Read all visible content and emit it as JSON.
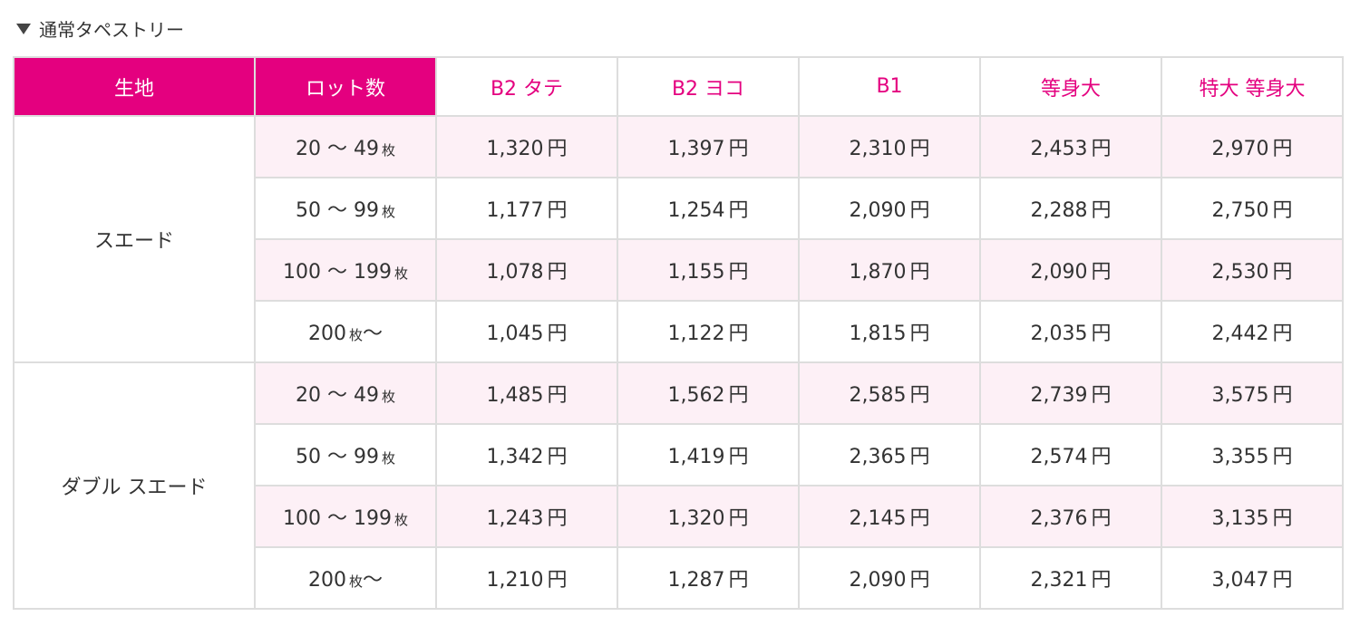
{
  "section": {
    "title": "通常タペストリー",
    "triangle_icon": "triangle-down-icon"
  },
  "colors": {
    "accent": "#e4007f",
    "row_stripe": "#fdf0f6",
    "border": "#dddddd"
  },
  "table": {
    "headers": {
      "fabric": "生地",
      "lot": "ロット数",
      "sizes": [
        "B2 タテ",
        "B2 ヨコ",
        "B1",
        "等身大",
        "特大 等身大"
      ]
    },
    "currency": "円",
    "lot_unit": "枚",
    "lot_tilde": "〜",
    "groups": [
      {
        "fabric": "スエード",
        "rows": [
          {
            "range": "20 〜 49",
            "prices": [
              "1,320",
              "1,397",
              "2,310",
              "2,453",
              "2,970"
            ]
          },
          {
            "range": "50 〜 99",
            "prices": [
              "1,177",
              "1,254",
              "2,090",
              "2,288",
              "2,750"
            ]
          },
          {
            "range": "100 〜 199",
            "prices": [
              "1,078",
              "1,155",
              "1,870",
              "2,090",
              "2,530"
            ]
          },
          {
            "range": "200",
            "prices": [
              "1,045",
              "1,122",
              "1,815",
              "2,035",
              "2,442"
            ],
            "open_ended": true
          }
        ]
      },
      {
        "fabric": "ダブル スエード",
        "rows": [
          {
            "range": "20 〜 49",
            "prices": [
              "1,485",
              "1,562",
              "2,585",
              "2,739",
              "3,575"
            ]
          },
          {
            "range": "50 〜 99",
            "prices": [
              "1,342",
              "1,419",
              "2,365",
              "2,574",
              "3,355"
            ]
          },
          {
            "range": "100 〜 199",
            "prices": [
              "1,243",
              "1,320",
              "2,145",
              "2,376",
              "3,135"
            ]
          },
          {
            "range": "200",
            "prices": [
              "1,210",
              "1,287",
              "2,090",
              "2,321",
              "3,047"
            ],
            "open_ended": true
          }
        ]
      }
    ]
  }
}
